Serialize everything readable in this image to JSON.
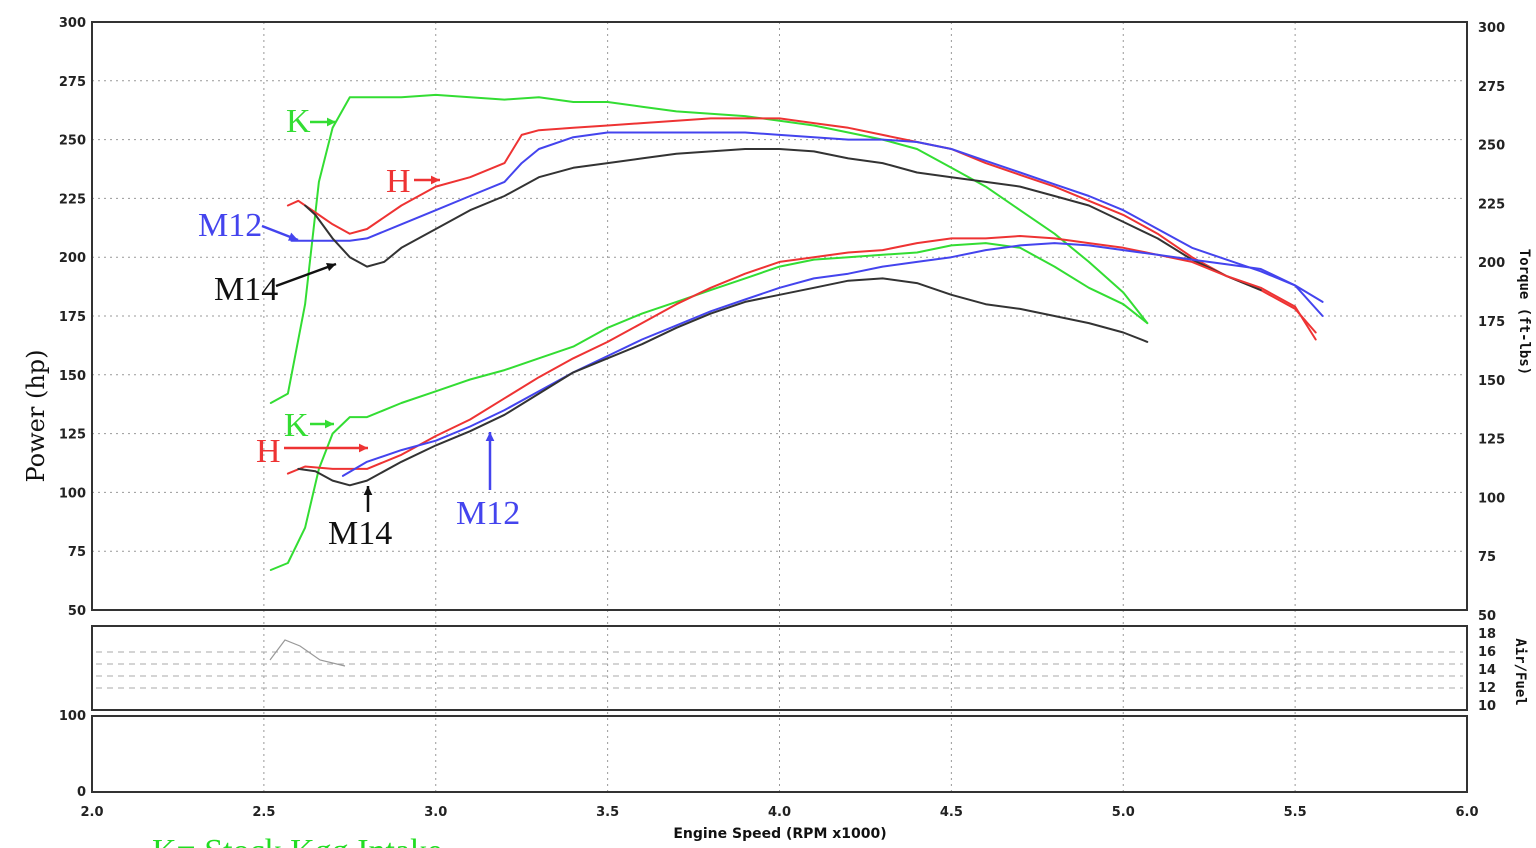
{
  "chart_data": {
    "type": "line",
    "xlabel": "Engine Speed (RPM x1000)",
    "ylabel_left": "Power (hp)",
    "ylabel_right": "Torque (ft-lbs)",
    "xlim": [
      2.0,
      6.0
    ],
    "x_ticks": [
      "2.0",
      "2.5",
      "3.0",
      "3.5",
      "4.0",
      "4.5",
      "5.0",
      "5.5",
      "6.0"
    ],
    "ylim_left": [
      50,
      300
    ],
    "y_ticks_left": [
      "300",
      "275",
      "250",
      "225",
      "200",
      "175",
      "150",
      "125",
      "100",
      "75",
      "50"
    ],
    "ylim_right": [
      50,
      300
    ],
    "y_ticks_right": [
      "300",
      "275",
      "250",
      "225",
      "200",
      "175",
      "150",
      "125",
      "100",
      "75",
      "50"
    ],
    "air_fuel_label": "Air/Fuel",
    "air_fuel_ticks": [
      "18",
      "16",
      "14",
      "12",
      "10"
    ],
    "lower_panel_ticks": [
      "100",
      "0"
    ],
    "grid": true,
    "series": [
      {
        "name": "K",
        "measure": "torque",
        "color": "#33dd33",
        "points": [
          [
            2.52,
            138
          ],
          [
            2.57,
            142
          ],
          [
            2.62,
            180
          ],
          [
            2.66,
            232
          ],
          [
            2.7,
            255
          ],
          [
            2.75,
            268
          ],
          [
            2.8,
            268
          ],
          [
            2.9,
            268
          ],
          [
            3.0,
            269
          ],
          [
            3.1,
            268
          ],
          [
            3.2,
            267
          ],
          [
            3.3,
            268
          ],
          [
            3.4,
            266
          ],
          [
            3.5,
            266
          ],
          [
            3.6,
            264
          ],
          [
            3.7,
            262
          ],
          [
            3.8,
            261
          ],
          [
            3.9,
            260
          ],
          [
            4.0,
            258
          ],
          [
            4.1,
            256
          ],
          [
            4.2,
            253
          ],
          [
            4.3,
            250
          ],
          [
            4.4,
            246
          ],
          [
            4.5,
            238
          ],
          [
            4.6,
            230
          ],
          [
            4.7,
            220
          ],
          [
            4.8,
            210
          ],
          [
            4.9,
            198
          ],
          [
            5.0,
            185
          ],
          [
            5.07,
            172
          ]
        ]
      },
      {
        "name": "H",
        "measure": "torque",
        "color": "#ee3333",
        "points": [
          [
            2.57,
            222
          ],
          [
            2.6,
            224
          ],
          [
            2.65,
            219
          ],
          [
            2.7,
            214
          ],
          [
            2.75,
            210
          ],
          [
            2.8,
            212
          ],
          [
            2.9,
            222
          ],
          [
            3.0,
            230
          ],
          [
            3.1,
            234
          ],
          [
            3.2,
            240
          ],
          [
            3.25,
            252
          ],
          [
            3.3,
            254
          ],
          [
            3.4,
            255
          ],
          [
            3.5,
            256
          ],
          [
            3.6,
            257
          ],
          [
            3.7,
            258
          ],
          [
            3.8,
            259
          ],
          [
            3.9,
            259
          ],
          [
            4.0,
            259
          ],
          [
            4.1,
            257
          ],
          [
            4.2,
            255
          ],
          [
            4.3,
            252
          ],
          [
            4.4,
            249
          ],
          [
            4.5,
            246
          ],
          [
            4.6,
            240
          ],
          [
            4.7,
            235
          ],
          [
            4.8,
            230
          ],
          [
            4.9,
            224
          ],
          [
            5.0,
            218
          ],
          [
            5.1,
            210
          ],
          [
            5.2,
            200
          ],
          [
            5.3,
            192
          ],
          [
            5.4,
            186
          ],
          [
            5.5,
            178
          ],
          [
            5.56,
            168
          ]
        ]
      },
      {
        "name": "M12",
        "measure": "torque",
        "color": "#4444ee",
        "points": [
          [
            2.58,
            207
          ],
          [
            2.65,
            207
          ],
          [
            2.7,
            207
          ],
          [
            2.75,
            207
          ],
          [
            2.8,
            208
          ],
          [
            2.9,
            214
          ],
          [
            3.0,
            220
          ],
          [
            3.1,
            226
          ],
          [
            3.2,
            232
          ],
          [
            3.25,
            240
          ],
          [
            3.3,
            246
          ],
          [
            3.4,
            251
          ],
          [
            3.5,
            253
          ],
          [
            3.6,
            253
          ],
          [
            3.7,
            253
          ],
          [
            3.8,
            253
          ],
          [
            3.9,
            253
          ],
          [
            4.0,
            252
          ],
          [
            4.1,
            251
          ],
          [
            4.2,
            250
          ],
          [
            4.3,
            250
          ],
          [
            4.4,
            249
          ],
          [
            4.5,
            246
          ],
          [
            4.6,
            241
          ],
          [
            4.7,
            236
          ],
          [
            4.8,
            231
          ],
          [
            4.9,
            226
          ],
          [
            5.0,
            220
          ],
          [
            5.1,
            212
          ],
          [
            5.2,
            204
          ],
          [
            5.3,
            199
          ],
          [
            5.4,
            194
          ],
          [
            5.5,
            188
          ],
          [
            5.58,
            181
          ]
        ]
      },
      {
        "name": "M14",
        "measure": "torque",
        "color": "#333333",
        "points": [
          [
            2.62,
            222
          ],
          [
            2.65,
            218
          ],
          [
            2.7,
            208
          ],
          [
            2.75,
            200
          ],
          [
            2.8,
            196
          ],
          [
            2.85,
            198
          ],
          [
            2.9,
            204
          ],
          [
            3.0,
            212
          ],
          [
            3.1,
            220
          ],
          [
            3.2,
            226
          ],
          [
            3.3,
            234
          ],
          [
            3.4,
            238
          ],
          [
            3.5,
            240
          ],
          [
            3.6,
            242
          ],
          [
            3.7,
            244
          ],
          [
            3.8,
            245
          ],
          [
            3.9,
            246
          ],
          [
            4.0,
            246
          ],
          [
            4.1,
            245
          ],
          [
            4.2,
            242
          ],
          [
            4.3,
            240
          ],
          [
            4.4,
            236
          ],
          [
            4.5,
            234
          ],
          [
            4.6,
            232
          ],
          [
            4.7,
            230
          ],
          [
            4.8,
            226
          ],
          [
            4.9,
            222
          ],
          [
            5.0,
            215
          ],
          [
            5.1,
            208
          ],
          [
            5.2,
            199
          ],
          [
            5.3,
            192
          ],
          [
            5.4,
            186
          ]
        ]
      },
      {
        "name": "K",
        "measure": "power",
        "color": "#33dd33",
        "points": [
          [
            2.52,
            67
          ],
          [
            2.57,
            70
          ],
          [
            2.62,
            85
          ],
          [
            2.66,
            110
          ],
          [
            2.7,
            125
          ],
          [
            2.75,
            132
          ],
          [
            2.8,
            132
          ],
          [
            2.9,
            138
          ],
          [
            3.0,
            143
          ],
          [
            3.1,
            148
          ],
          [
            3.2,
            152
          ],
          [
            3.3,
            157
          ],
          [
            3.4,
            162
          ],
          [
            3.5,
            170
          ],
          [
            3.6,
            176
          ],
          [
            3.7,
            181
          ],
          [
            3.8,
            186
          ],
          [
            3.9,
            191
          ],
          [
            4.0,
            196
          ],
          [
            4.1,
            199
          ],
          [
            4.2,
            200
          ],
          [
            4.3,
            201
          ],
          [
            4.4,
            202
          ],
          [
            4.5,
            205
          ],
          [
            4.6,
            206
          ],
          [
            4.7,
            204
          ],
          [
            4.8,
            196
          ],
          [
            4.9,
            187
          ],
          [
            5.0,
            180
          ],
          [
            5.07,
            172
          ]
        ]
      },
      {
        "name": "H",
        "measure": "power",
        "color": "#ee3333",
        "points": [
          [
            2.57,
            108
          ],
          [
            2.62,
            111
          ],
          [
            2.7,
            110
          ],
          [
            2.8,
            110
          ],
          [
            2.9,
            116
          ],
          [
            3.0,
            124
          ],
          [
            3.1,
            131
          ],
          [
            3.2,
            140
          ],
          [
            3.3,
            149
          ],
          [
            3.4,
            157
          ],
          [
            3.5,
            164
          ],
          [
            3.6,
            172
          ],
          [
            3.7,
            180
          ],
          [
            3.8,
            187
          ],
          [
            3.9,
            193
          ],
          [
            4.0,
            198
          ],
          [
            4.1,
            200
          ],
          [
            4.2,
            202
          ],
          [
            4.3,
            203
          ],
          [
            4.4,
            206
          ],
          [
            4.5,
            208
          ],
          [
            4.6,
            208
          ],
          [
            4.7,
            209
          ],
          [
            4.8,
            208
          ],
          [
            4.9,
            206
          ],
          [
            5.0,
            204
          ],
          [
            5.1,
            201
          ],
          [
            5.2,
            198
          ],
          [
            5.3,
            192
          ],
          [
            5.4,
            187
          ],
          [
            5.5,
            179
          ],
          [
            5.56,
            165
          ]
        ]
      },
      {
        "name": "M12",
        "measure": "power",
        "color": "#4444ee",
        "points": [
          [
            2.73,
            107
          ],
          [
            2.8,
            113
          ],
          [
            2.9,
            118
          ],
          [
            3.0,
            122
          ],
          [
            3.1,
            128
          ],
          [
            3.2,
            135
          ],
          [
            3.3,
            143
          ],
          [
            3.4,
            151
          ],
          [
            3.5,
            158
          ],
          [
            3.6,
            165
          ],
          [
            3.7,
            171
          ],
          [
            3.8,
            177
          ],
          [
            3.9,
            182
          ],
          [
            4.0,
            187
          ],
          [
            4.1,
            191
          ],
          [
            4.2,
            193
          ],
          [
            4.3,
            196
          ],
          [
            4.4,
            198
          ],
          [
            4.5,
            200
          ],
          [
            4.6,
            203
          ],
          [
            4.7,
            205
          ],
          [
            4.8,
            206
          ],
          [
            4.9,
            205
          ],
          [
            5.0,
            203
          ],
          [
            5.1,
            201
          ],
          [
            5.2,
            199
          ],
          [
            5.3,
            197
          ],
          [
            5.4,
            195
          ],
          [
            5.5,
            188
          ],
          [
            5.58,
            175
          ]
        ]
      },
      {
        "name": "M14",
        "measure": "power",
        "color": "#333333",
        "points": [
          [
            2.6,
            110
          ],
          [
            2.65,
            109
          ],
          [
            2.7,
            105
          ],
          [
            2.75,
            103
          ],
          [
            2.8,
            105
          ],
          [
            2.9,
            113
          ],
          [
            3.0,
            120
          ],
          [
            3.1,
            126
          ],
          [
            3.2,
            133
          ],
          [
            3.3,
            142
          ],
          [
            3.4,
            151
          ],
          [
            3.5,
            157
          ],
          [
            3.6,
            163
          ],
          [
            3.7,
            170
          ],
          [
            3.8,
            176
          ],
          [
            3.9,
            181
          ],
          [
            4.0,
            184
          ],
          [
            4.1,
            187
          ],
          [
            4.2,
            190
          ],
          [
            4.3,
            191
          ],
          [
            4.4,
            189
          ],
          [
            4.5,
            184
          ],
          [
            4.6,
            180
          ],
          [
            4.7,
            178
          ],
          [
            4.8,
            175
          ],
          [
            4.9,
            172
          ],
          [
            5.0,
            168
          ],
          [
            5.07,
            164
          ]
        ]
      }
    ],
    "annotations": [
      {
        "text": "K",
        "color": "#33dd33"
      },
      {
        "text": "H",
        "color": "#ee3333"
      },
      {
        "text": "M12",
        "color": "#4444ee"
      },
      {
        "text": "M14",
        "color": "#111111"
      },
      {
        "text": "K",
        "color": "#33dd33"
      },
      {
        "text": "H",
        "color": "#ee3333"
      },
      {
        "text": "M14",
        "color": "#111111"
      },
      {
        "text": "M12",
        "color": "#4444ee"
      }
    ],
    "bottom_note": "K= Stock Kgg Intake"
  }
}
